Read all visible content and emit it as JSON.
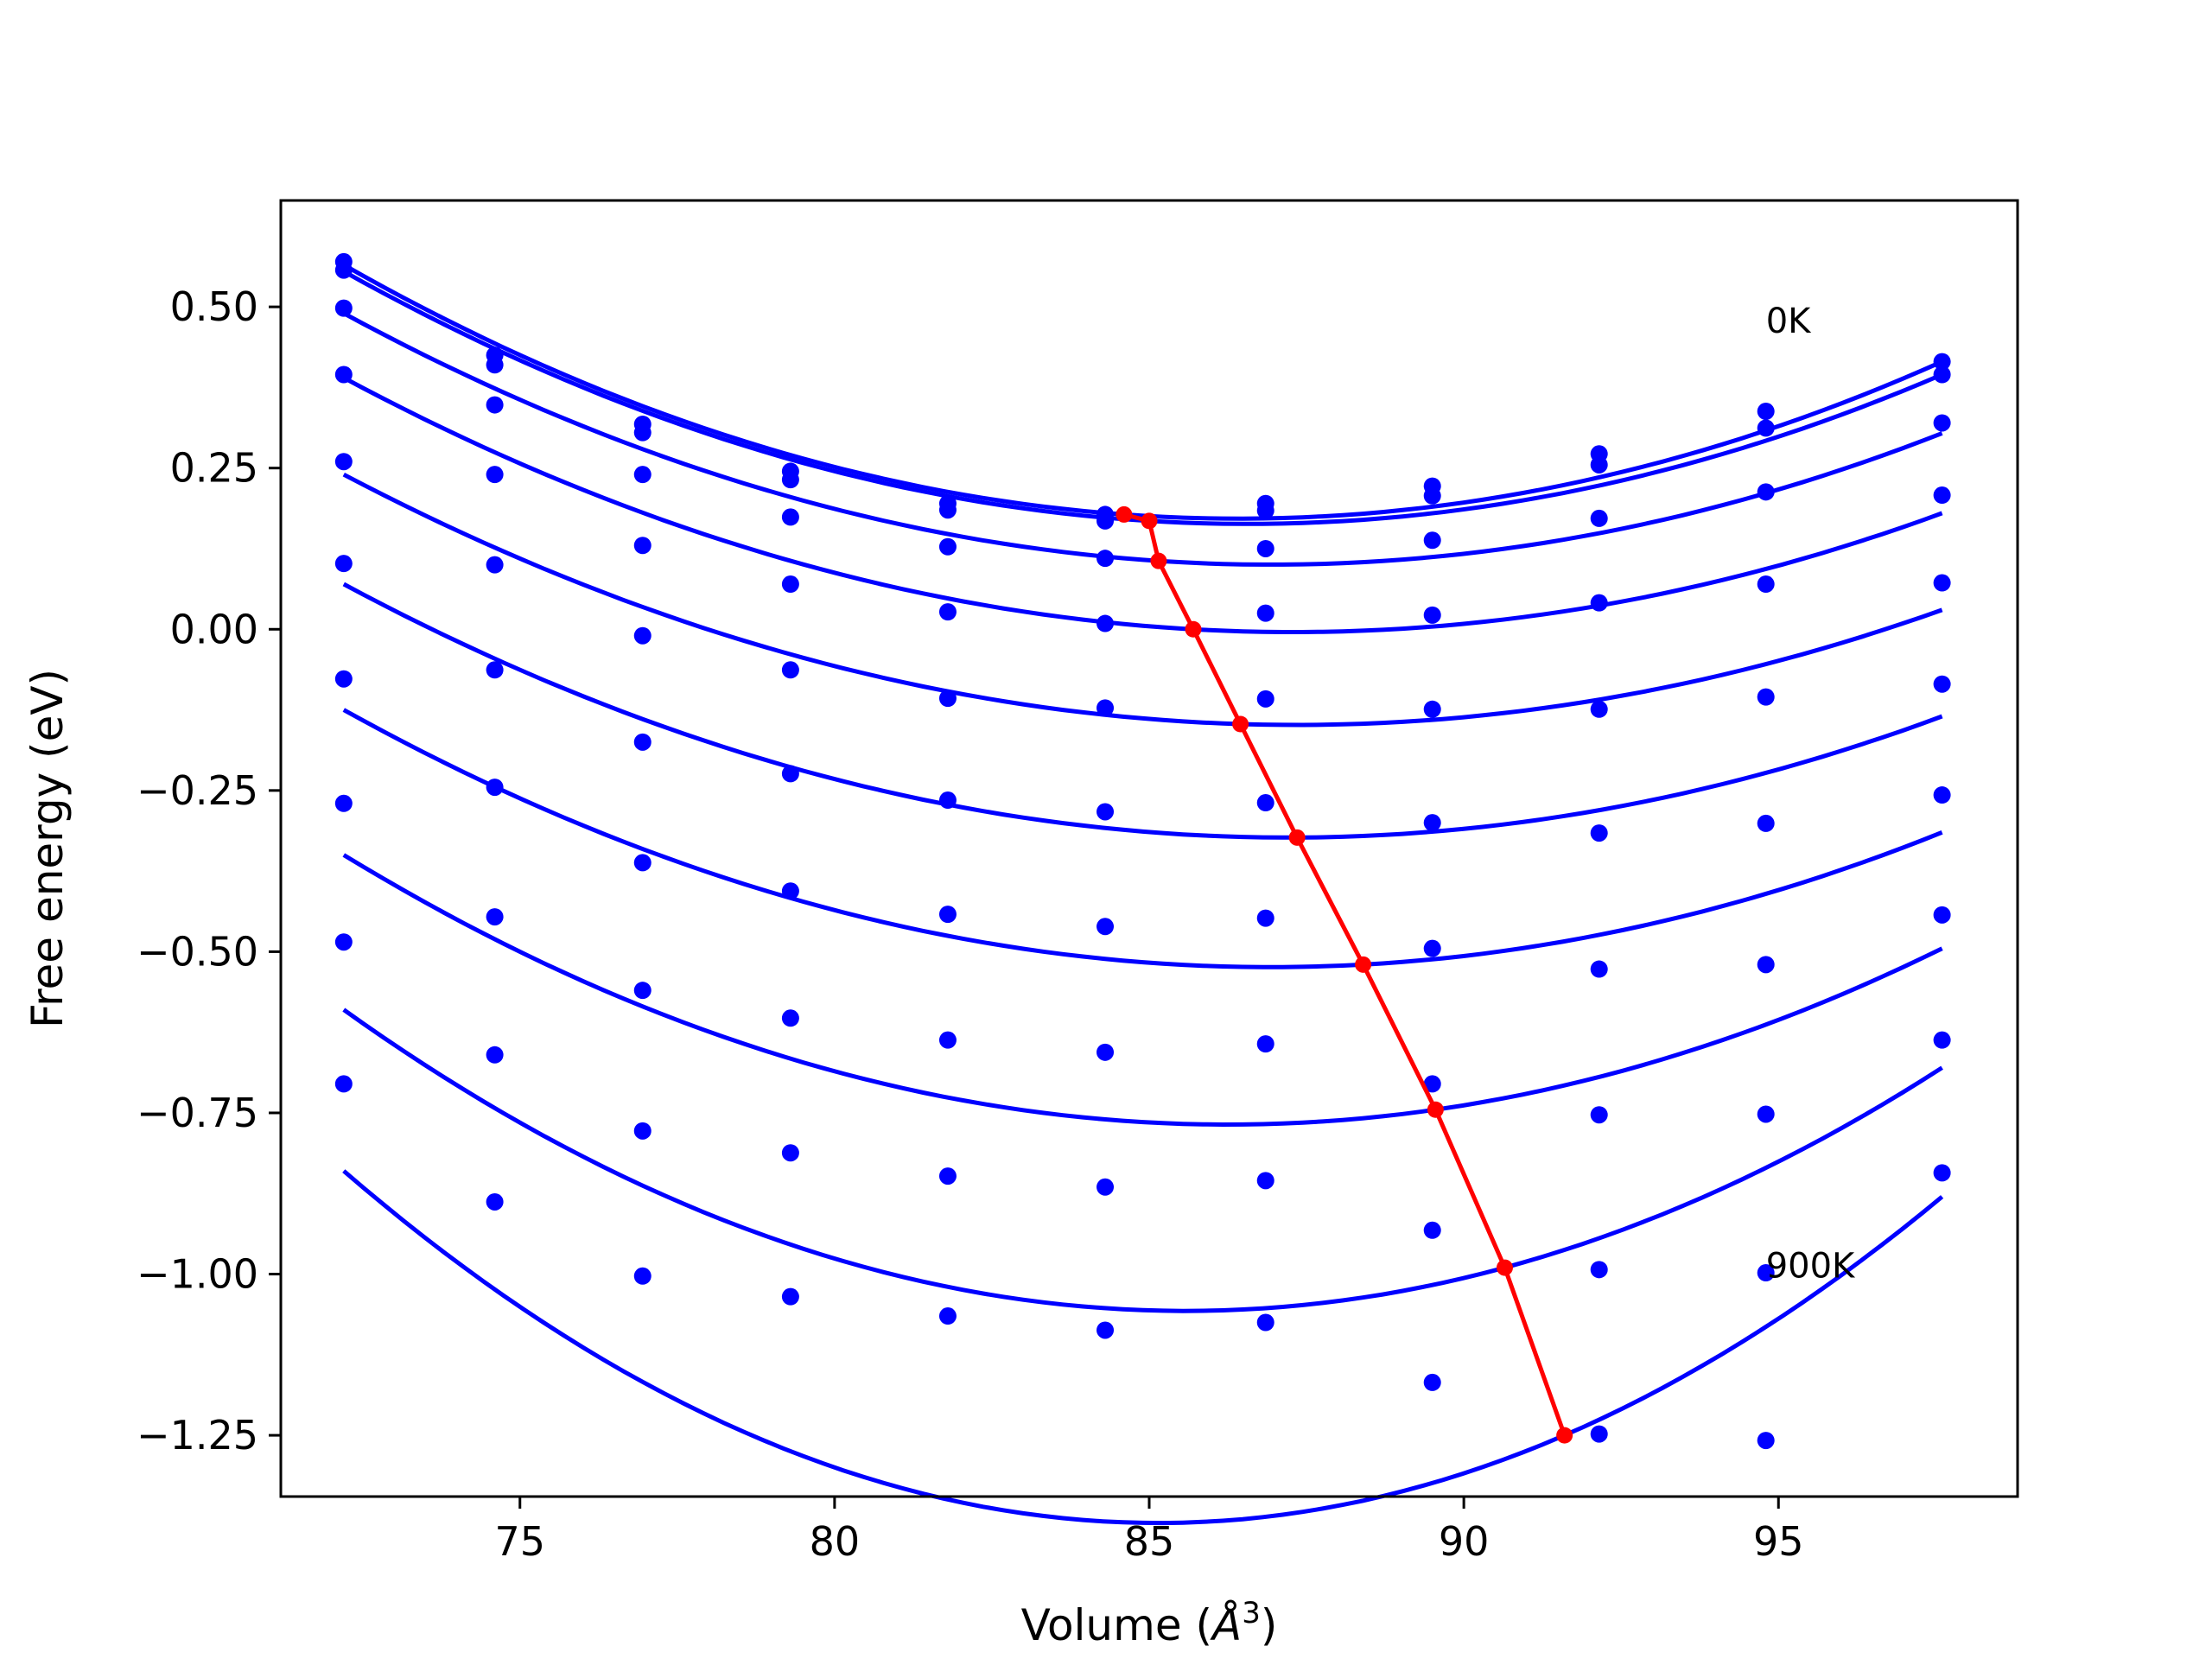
{
  "chart_data": {
    "type": "scatter",
    "xlabel": "Volume (",
    "xlabel_unit": "Å",
    "xlabel_exp": "3",
    "xlabel_close": ")",
    "ylabel": "Free energy (eV)",
    "xlim": [
      71.2,
      98.8
    ],
    "ylim": [
      -1.345,
      0.665
    ],
    "xticks": [
      75,
      80,
      85,
      90,
      95
    ],
    "xtick_labels": [
      "75",
      "80",
      "85",
      "90",
      "95"
    ],
    "yticks": [
      0.5,
      0.25,
      0.0,
      -0.25,
      -0.5,
      -0.75,
      -1.0,
      -1.25
    ],
    "ytick_labels": [
      "0.50",
      "0.25",
      "0.00",
      "−0.25",
      "−0.50",
      "−0.75",
      "−1.00",
      "−1.25"
    ],
    "annotations": [
      {
        "text": "0K",
        "x": 94.8,
        "y": 0.46
      },
      {
        "text": "900K",
        "x": 94.8,
        "y": -1.005
      }
    ],
    "colors": {
      "points": "#0000ff",
      "fits": "#0000ff",
      "minima": "#ff0000"
    },
    "volumes": [
      72.2,
      74.6,
      76.95,
      79.3,
      81.8,
      84.3,
      86.85,
      89.5,
      92.15,
      94.8,
      97.6
    ],
    "series": [
      {
        "points": [
          0.57,
          0.425,
          0.318,
          0.245,
          0.195,
          0.178,
          0.195,
          0.222,
          0.272,
          0.338,
          0.415
        ],
        "fit": [
          [
            72.2,
            0.565
          ],
          [
            84.6,
            0.178
          ],
          [
            97.6,
            0.415
          ]
        ]
      },
      {
        "points": [
          0.557,
          0.41,
          0.305,
          0.232,
          0.185,
          0.168,
          0.184,
          0.207,
          0.255,
          0.312,
          0.395
        ],
        "fit": [
          [
            72.2,
            0.555
          ],
          [
            85.0,
            0.168
          ],
          [
            97.6,
            0.395
          ]
        ]
      },
      {
        "points": [
          0.498,
          0.348,
          0.24,
          0.174,
          0.128,
          0.11,
          0.125,
          0.138,
          0.172,
          0.213,
          0.32
        ],
        "fit": [
          [
            72.2,
            0.49
          ],
          [
            85.15,
            0.106
          ],
          [
            97.6,
            0.304
          ]
        ]
      },
      {
        "points": [
          0.395,
          0.24,
          0.13,
          0.07,
          0.027,
          0.009,
          0.025,
          0.022,
          0.041,
          0.07,
          0.208
        ],
        "fit": [
          [
            72.2,
            0.39
          ],
          [
            85.7,
            0.0
          ],
          [
            97.6,
            0.18
          ]
        ]
      },
      {
        "points": [
          0.26,
          0.1,
          -0.01,
          -0.063,
          -0.107,
          -0.122,
          -0.108,
          -0.124,
          -0.124,
          -0.105,
          0.072
        ],
        "fit": [
          [
            72.2,
            0.24
          ],
          [
            86.45,
            -0.147
          ],
          [
            97.6,
            0.03
          ]
        ]
      },
      {
        "points": [
          0.102,
          -0.063,
          -0.175,
          -0.224,
          -0.265,
          -0.283,
          -0.269,
          -0.3,
          -0.316,
          -0.301,
          -0.085
        ],
        "fit": [
          [
            72.2,
            0.07
          ],
          [
            87.35,
            -0.323
          ],
          [
            97.6,
            -0.135
          ]
        ]
      },
      {
        "points": [
          -0.077,
          -0.245,
          -0.362,
          -0.406,
          -0.442,
          -0.461,
          -0.448,
          -0.495,
          -0.527,
          -0.52,
          -0.257
        ],
        "fit": [
          [
            72.2,
            -0.125
          ],
          [
            88.4,
            -0.52
          ],
          [
            97.6,
            -0.315
          ]
        ]
      },
      {
        "points": [
          -0.27,
          -0.446,
          -0.56,
          -0.603,
          -0.637,
          -0.656,
          -0.643,
          -0.705,
          -0.753,
          -0.752,
          -0.443
        ],
        "fit": [
          [
            72.2,
            -0.35
          ],
          [
            89.55,
            -0.745
          ],
          [
            97.6,
            -0.495
          ]
        ]
      },
      {
        "points": [
          -0.485,
          -0.66,
          -0.778,
          -0.812,
          -0.848,
          -0.865,
          -0.855,
          -0.932,
          -0.993,
          -0.998,
          -0.637
        ],
        "fit": [
          [
            72.2,
            -0.59
          ],
          [
            90.65,
            -0.99
          ],
          [
            97.6,
            -0.68
          ]
        ]
      },
      {
        "points": [
          -0.705,
          -0.888,
          -1.003,
          -1.035,
          -1.065,
          -1.087,
          -1.075,
          -1.168,
          -1.248,
          -1.258,
          -0.843
        ],
        "fit": [
          [
            72.2,
            -0.84
          ],
          [
            91.6,
            -1.25
          ],
          [
            97.6,
            -0.88
          ]
        ]
      }
    ],
    "minima": {
      "x": [
        84.6,
        85.0,
        85.15,
        85.7,
        86.45,
        87.35,
        88.4,
        89.55,
        90.65,
        91.6
      ],
      "y": [
        0.178,
        0.168,
        0.106,
        0.0,
        -0.147,
        -0.323,
        -0.52,
        -0.745,
        -0.99,
        -1.25
      ]
    }
  }
}
